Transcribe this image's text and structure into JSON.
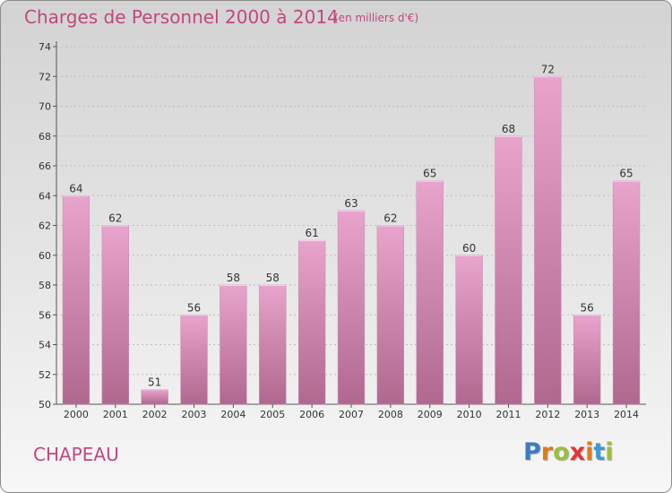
{
  "header": {
    "title": "Charges de Personnel 2000 à 2014",
    "subtitle": "(en milliers d'€)"
  },
  "footer": {
    "commune": "CHAPEAU",
    "logo_letters": [
      "P",
      "r",
      "o",
      "x",
      "i",
      "t",
      "i"
    ],
    "logo_colors": [
      "#3a7cc4",
      "#e07a1a",
      "#9ac03c",
      "#e0353a",
      "#e07a1a",
      "#3a9ad8",
      "#9ac03c"
    ]
  },
  "colors": {
    "bar_top": "#e8a4cc",
    "bar_bottom": "#b0688f",
    "accent": "#c0487f"
  },
  "chart_data": {
    "type": "bar",
    "categories": [
      "2000",
      "2001",
      "2002",
      "2003",
      "2004",
      "2005",
      "2006",
      "2007",
      "2008",
      "2009",
      "2010",
      "2011",
      "2012",
      "2013",
      "2014"
    ],
    "values": [
      64,
      62,
      51,
      56,
      58,
      58,
      61,
      63,
      62,
      65,
      60,
      68,
      72,
      56,
      65
    ],
    "value_labels": [
      "64",
      "62",
      "51",
      "56",
      "58",
      "58",
      "61",
      "63",
      "62",
      "65",
      "60",
      "68",
      "72",
      "56",
      "65"
    ],
    "yticks": [
      "50",
      "52",
      "54",
      "56",
      "58",
      "60",
      "62",
      "64",
      "66",
      "68",
      "70",
      "72",
      "74"
    ],
    "ylim": [
      50,
      74
    ],
    "grid": true,
    "legend": "none"
  }
}
